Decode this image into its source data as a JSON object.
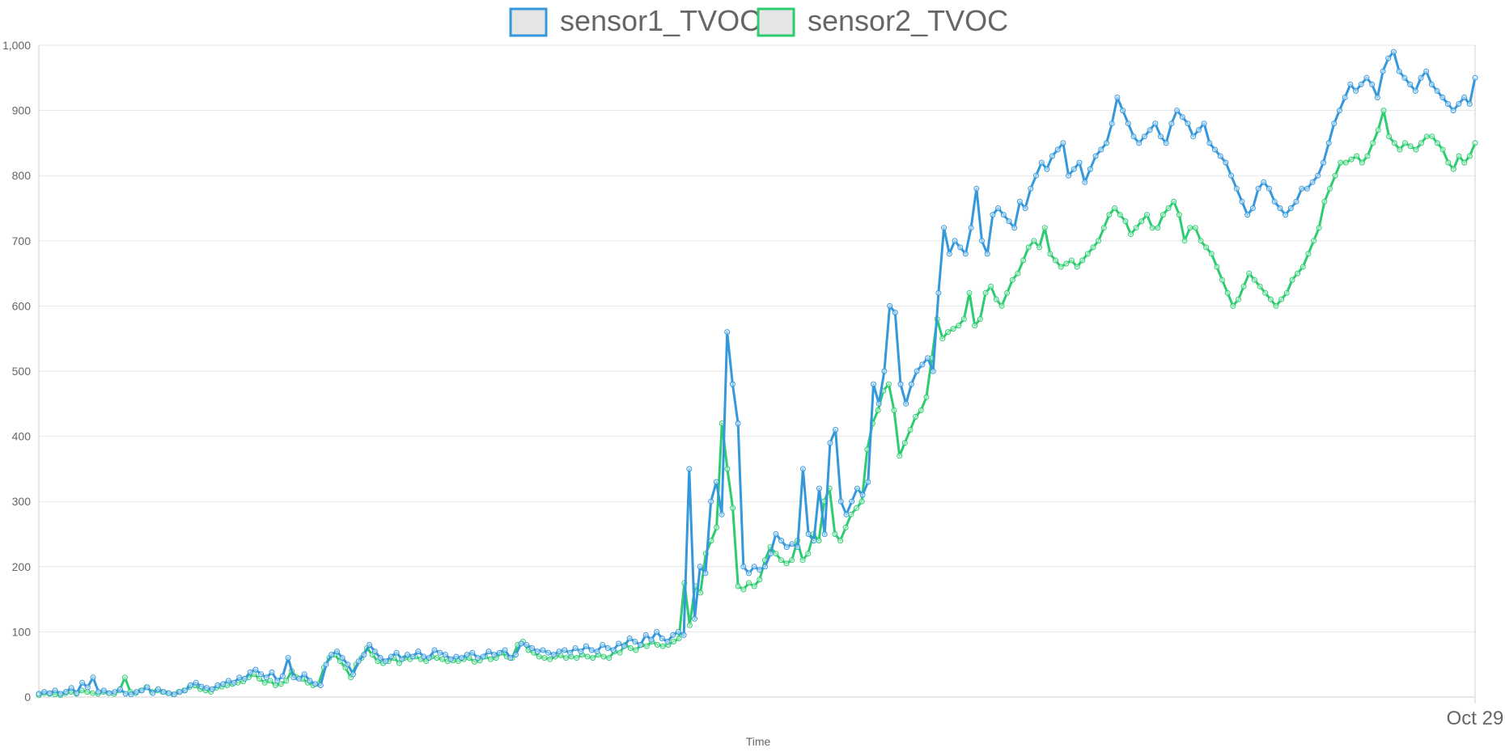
{
  "chart_data": {
    "type": "line",
    "title": "",
    "xlabel": "Time",
    "ylabel": "",
    "ylim": [
      0,
      1000
    ],
    "y_ticks": [
      0,
      100,
      200,
      300,
      400,
      500,
      600,
      700,
      800,
      900,
      1000
    ],
    "y_tick_labels": [
      "0",
      "100",
      "200",
      "300",
      "400",
      "500",
      "600",
      "700",
      "800",
      "900",
      "1,000"
    ],
    "x_tick_labels": [
      "Oct 29"
    ],
    "grid": true,
    "legend_position": "top-center",
    "series": [
      {
        "name": "sensor1_TVOC",
        "color": "#3498db",
        "values": [
          5,
          8,
          6,
          10,
          5,
          8,
          14,
          6,
          22,
          15,
          30,
          8,
          10,
          6,
          8,
          12,
          5,
          4,
          8,
          10,
          15,
          6,
          12,
          8,
          6,
          4,
          8,
          10,
          18,
          22,
          16,
          14,
          12,
          18,
          20,
          25,
          22,
          30,
          28,
          38,
          42,
          35,
          30,
          38,
          25,
          32,
          60,
          30,
          28,
          35,
          25,
          20,
          18,
          50,
          65,
          70,
          60,
          50,
          35,
          55,
          65,
          80,
          70,
          60,
          55,
          62,
          68,
          58,
          65,
          62,
          70,
          62,
          60,
          72,
          68,
          65,
          58,
          62,
          60,
          65,
          68,
          60,
          62,
          70,
          65,
          68,
          72,
          60,
          65,
          82,
          80,
          75,
          70,
          72,
          68,
          65,
          70,
          72,
          68,
          75,
          70,
          78,
          72,
          70,
          80,
          75,
          72,
          82,
          78,
          90,
          85,
          80,
          95,
          88,
          100,
          90,
          85,
          95,
          100,
          95,
          350,
          120,
          200,
          190,
          300,
          330,
          280,
          560,
          480,
          420,
          200,
          190,
          200,
          195,
          200,
          220,
          250,
          240,
          230,
          235,
          230,
          350,
          250,
          240,
          320,
          250,
          390,
          410,
          300,
          280,
          300,
          320,
          310,
          330,
          480,
          450,
          500,
          600,
          590,
          480,
          450,
          480,
          500,
          510,
          520,
          500,
          620,
          720,
          680,
          700,
          690,
          680,
          720,
          780,
          700,
          680,
          740,
          750,
          740,
          730,
          720,
          760,
          750,
          780,
          800,
          820,
          810,
          830,
          840,
          850,
          800,
          810,
          820,
          790,
          810,
          830,
          840,
          850,
          880,
          920,
          900,
          880,
          860,
          850,
          860,
          870,
          880,
          860,
          850,
          880,
          900,
          890,
          880,
          860,
          870,
          880,
          850,
          840,
          830,
          820,
          800,
          780,
          760,
          740,
          750,
          780,
          790,
          780,
          760,
          750,
          740,
          750,
          760,
          780,
          780,
          790,
          800,
          820,
          850,
          880,
          900,
          920,
          940,
          930,
          940,
          950,
          940,
          920,
          960,
          980,
          990,
          960,
          950,
          940,
          930,
          950,
          960,
          940,
          930,
          920,
          910,
          900,
          910,
          920,
          910,
          950
        ]
      },
      {
        "name": "sensor2_TVOC",
        "color": "#2ecc71",
        "values": [
          3,
          6,
          5,
          4,
          3,
          6,
          8,
          5,
          10,
          8,
          6,
          5,
          8,
          6,
          5,
          10,
          30,
          8,
          6,
          10,
          15,
          8,
          10,
          8,
          6,
          4,
          8,
          10,
          15,
          18,
          12,
          10,
          8,
          14,
          16,
          18,
          20,
          22,
          24,
          30,
          35,
          28,
          22,
          25,
          18,
          20,
          25,
          40,
          30,
          28,
          22,
          18,
          20,
          45,
          60,
          65,
          55,
          45,
          30,
          50,
          60,
          75,
          65,
          55,
          52,
          55,
          60,
          52,
          60,
          58,
          62,
          58,
          55,
          62,
          60,
          58,
          55,
          56,
          55,
          58,
          60,
          54,
          56,
          62,
          58,
          60,
          68,
          62,
          60,
          80,
          85,
          72,
          68,
          62,
          60,
          58,
          62,
          64,
          60,
          62,
          60,
          65,
          62,
          60,
          65,
          62,
          60,
          70,
          68,
          80,
          75,
          72,
          80,
          78,
          85,
          80,
          78,
          80,
          85,
          90,
          175,
          110,
          170,
          160,
          220,
          240,
          260,
          420,
          350,
          290,
          170,
          165,
          175,
          170,
          180,
          210,
          230,
          220,
          210,
          205,
          210,
          240,
          210,
          220,
          250,
          240,
          300,
          320,
          250,
          240,
          260,
          280,
          290,
          300,
          380,
          420,
          440,
          470,
          480,
          440,
          370,
          390,
          410,
          430,
          440,
          460,
          520,
          580,
          550,
          560,
          565,
          570,
          580,
          620,
          570,
          580,
          620,
          630,
          610,
          600,
          620,
          640,
          650,
          670,
          690,
          700,
          690,
          720,
          680,
          670,
          660,
          665,
          670,
          660,
          670,
          680,
          690,
          700,
          720,
          740,
          750,
          740,
          730,
          710,
          720,
          730,
          740,
          720,
          720,
          740,
          750,
          760,
          740,
          700,
          720,
          720,
          700,
          690,
          680,
          660,
          640,
          620,
          600,
          610,
          630,
          650,
          640,
          630,
          620,
          610,
          600,
          610,
          620,
          640,
          650,
          660,
          680,
          700,
          720,
          760,
          780,
          800,
          820,
          820,
          825,
          830,
          820,
          830,
          850,
          870,
          900,
          860,
          850,
          840,
          850,
          845,
          840,
          850,
          860,
          860,
          850,
          840,
          820,
          810,
          830,
          820,
          830,
          850
        ]
      }
    ]
  }
}
